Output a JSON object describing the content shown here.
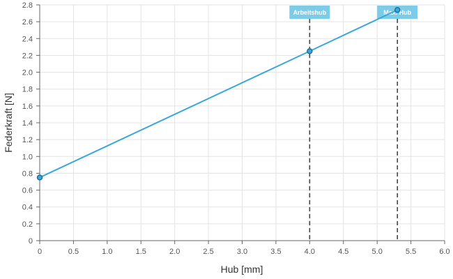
{
  "chart_data": {
    "type": "line",
    "xlabel": "Hub [mm]",
    "ylabel": "Federkraft [N]",
    "xlim": [
      0,
      6
    ],
    "ylim": [
      0,
      2.8
    ],
    "x_ticks": [
      "0",
      "0.5",
      "1.0",
      "1.5",
      "2.0",
      "2.5",
      "3.0",
      "3.5",
      "4.0",
      "4.5",
      "5.0",
      "5.5",
      "6.0"
    ],
    "y_ticks": [
      "0",
      "0.2",
      "0.4",
      "0.6",
      "0.8",
      "1.0",
      "1.2",
      "1.4",
      "1.6",
      "1.8",
      "2.0",
      "2.2",
      "2.4",
      "2.6",
      "2.8"
    ],
    "grid": true,
    "series": [
      {
        "points": [
          {
            "x": 0,
            "y": 0.75
          },
          {
            "x": 4.0,
            "y": 2.25
          },
          {
            "x": 5.3,
            "y": 2.74
          }
        ]
      }
    ],
    "vertical_markers": [
      {
        "x": 4.0,
        "label": "Arbeitshub"
      },
      {
        "x": 5.3,
        "label": "Max. Hub"
      }
    ],
    "colors": {
      "line": "#3aa8d8",
      "point_stroke": "#1f6f99",
      "marker_line": "#444444",
      "marker_label_bg": "#7ccbe8",
      "grid": "#e3e3e3",
      "axis": "#666666"
    }
  }
}
